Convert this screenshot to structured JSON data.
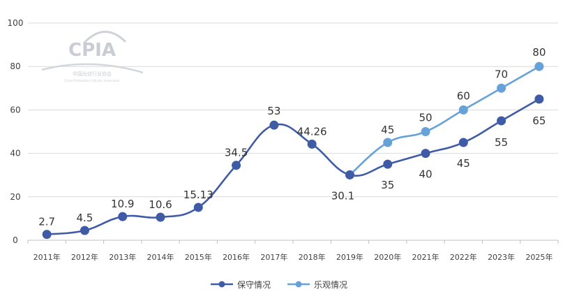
{
  "colors": {
    "conservative": "#3f5ba6",
    "optimistic": "#66a1d8",
    "grid": "#d9d9d9",
    "axis": "#bfbfbf",
    "text": "#404040",
    "watermark": "#c9cdd3"
  },
  "watermark": {
    "logo": "CPIA",
    "org_cn": "中国光伏行业协会",
    "org_en": "China Photovoltaic Industry Association"
  },
  "chart_data": {
    "type": "line",
    "title": "",
    "xlabel": "",
    "ylabel": "",
    "ylim": [
      0,
      100
    ],
    "yticks": [
      0,
      20,
      40,
      60,
      80,
      100
    ],
    "grid": true,
    "legend_position": "bottom",
    "categories": [
      "2011年",
      "2012年",
      "2013年",
      "2014年",
      "2015年",
      "2016年",
      "2017年",
      "2018年",
      "2019年",
      "2020年",
      "2021年",
      "2022年",
      "2023年",
      "2025年"
    ],
    "series": [
      {
        "name": "保守情况",
        "color": "#3f5ba6",
        "values": [
          2.7,
          4.5,
          10.9,
          10.6,
          15.13,
          34.5,
          53,
          44.26,
          30.1,
          35,
          40,
          45,
          55,
          65
        ],
        "labels": [
          "2.7",
          "4.5",
          "10.9",
          "10.6",
          "15.13",
          "34.5",
          "53",
          "44.26",
          "30.1",
          "35",
          "40",
          "45",
          "55",
          "65"
        ]
      },
      {
        "name": "乐观情况",
        "color": "#66a1d8",
        "values": [
          null,
          null,
          null,
          null,
          null,
          null,
          null,
          null,
          30.1,
          45,
          50,
          60,
          70,
          80
        ],
        "labels": [
          null,
          null,
          null,
          null,
          null,
          null,
          null,
          null,
          null,
          "45",
          "50",
          "60",
          "70",
          "80"
        ]
      }
    ]
  }
}
